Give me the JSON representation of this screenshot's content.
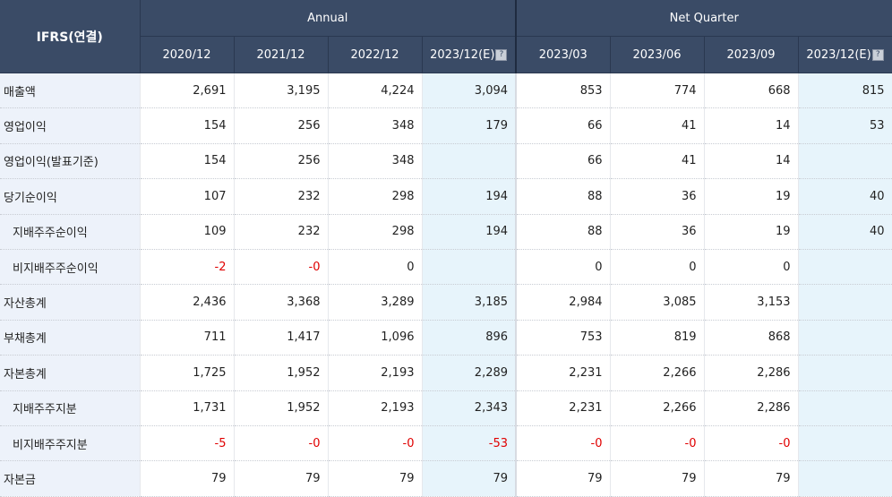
{
  "header": {
    "corner_label": "IFRS(연결)",
    "annual_label": "Annual",
    "quarter_label": "Net Quarter",
    "annual_periods": [
      "2020/12",
      "2021/12",
      "2022/12",
      "2023/12(E)"
    ],
    "quarter_periods": [
      "2023/03",
      "2023/06",
      "2023/09",
      "2023/12(E)"
    ],
    "estimate_icon": "question-mark-icon"
  },
  "rows": [
    {
      "label": "매출액",
      "indent": false,
      "values": [
        "2,691",
        "3,195",
        "4,224",
        "3,094",
        "853",
        "774",
        "668",
        "815"
      ]
    },
    {
      "label": "영업이익",
      "indent": false,
      "values": [
        "154",
        "256",
        "348",
        "179",
        "66",
        "41",
        "14",
        "53"
      ]
    },
    {
      "label": "영업이익(발표기준)",
      "indent": false,
      "values": [
        "154",
        "256",
        "348",
        "",
        "66",
        "41",
        "14",
        ""
      ]
    },
    {
      "label": "당기순이익",
      "indent": false,
      "values": [
        "107",
        "232",
        "298",
        "194",
        "88",
        "36",
        "19",
        "40"
      ]
    },
    {
      "label": "지배주주순이익",
      "indent": true,
      "values": [
        "109",
        "232",
        "298",
        "194",
        "88",
        "36",
        "19",
        "40"
      ]
    },
    {
      "label": "비지배주주순이익",
      "indent": true,
      "values": [
        "-2",
        "-0",
        "0",
        "",
        "0",
        "0",
        "0",
        ""
      ]
    },
    {
      "label": "자산총계",
      "indent": false,
      "values": [
        "2,436",
        "3,368",
        "3,289",
        "3,185",
        "2,984",
        "3,085",
        "3,153",
        ""
      ]
    },
    {
      "label": "부채총계",
      "indent": false,
      "values": [
        "711",
        "1,417",
        "1,096",
        "896",
        "753",
        "819",
        "868",
        ""
      ]
    },
    {
      "label": "자본총계",
      "indent": false,
      "values": [
        "1,725",
        "1,952",
        "2,193",
        "2,289",
        "2,231",
        "2,266",
        "2,286",
        ""
      ]
    },
    {
      "label": "지배주주지분",
      "indent": true,
      "values": [
        "1,731",
        "1,952",
        "2,193",
        "2,343",
        "2,231",
        "2,266",
        "2,286",
        ""
      ]
    },
    {
      "label": "비지배주주지분",
      "indent": true,
      "values": [
        "-5",
        "-0",
        "-0",
        "-53",
        "-0",
        "-0",
        "-0",
        ""
      ]
    },
    {
      "label": "자본금",
      "indent": false,
      "values": [
        "79",
        "79",
        "79",
        "79",
        "79",
        "79",
        "79",
        ""
      ]
    }
  ],
  "colors": {
    "header_bg": "#3a4b66",
    "label_bg": "#edf2fa",
    "estimate_bg": "#e7f4fb",
    "negative": "#e00000"
  }
}
